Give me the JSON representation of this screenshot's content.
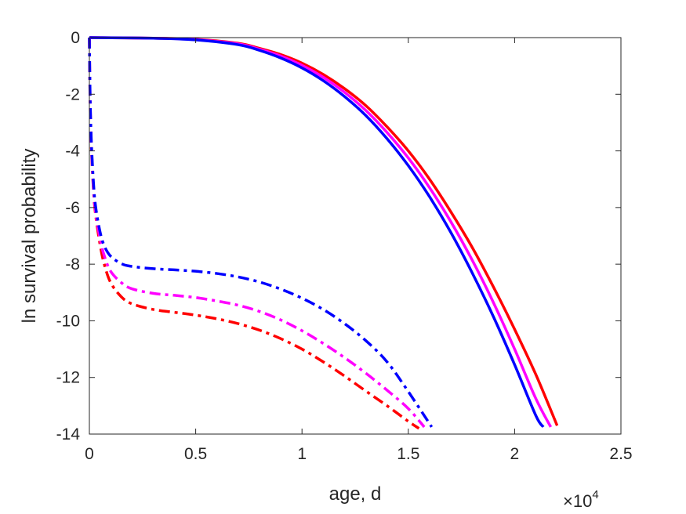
{
  "chart_data": {
    "type": "line",
    "title": "",
    "xlabel": "age, d",
    "ylabel": "ln survival probability",
    "x_multiplier": {
      "base": "×10",
      "exponent": "4"
    },
    "xlim": [
      0,
      25000
    ],
    "ylim": [
      -14,
      0
    ],
    "x_ticks": [
      0,
      5000,
      10000,
      15000,
      20000,
      25000
    ],
    "x_tick_labels": [
      "0",
      "0.5",
      "1",
      "1.5",
      "2",
      "2.5"
    ],
    "y_ticks": [
      0,
      -2,
      -4,
      -6,
      -8,
      -10,
      -12,
      -14
    ],
    "y_tick_labels": [
      "0",
      "-2",
      "-4",
      "-6",
      "-8",
      "-10",
      "-12",
      "-14"
    ],
    "grid": false,
    "legend": "none",
    "series": [
      {
        "color": "#ff0000",
        "style": "solid",
        "x": [
          0,
          3000,
          5000,
          7000,
          8000,
          9000,
          10000,
          11000,
          12000,
          13000,
          14000,
          15000,
          16000,
          17000,
          18000,
          19000,
          20000,
          21000,
          22000
        ],
        "y": [
          0,
          -0.02,
          -0.06,
          -0.2,
          -0.38,
          -0.6,
          -0.9,
          -1.3,
          -1.8,
          -2.4,
          -3.15,
          -4.0,
          -5.0,
          -6.15,
          -7.4,
          -8.8,
          -10.3,
          -11.9,
          -13.7
        ]
      },
      {
        "color": "#ff00ff",
        "style": "solid",
        "x": [
          0,
          3000,
          5000,
          7000,
          8000,
          9000,
          10000,
          11000,
          12000,
          13000,
          14000,
          15000,
          16000,
          17000,
          18000,
          19000,
          20000,
          21000,
          21700
        ],
        "y": [
          0,
          -0.02,
          -0.07,
          -0.22,
          -0.41,
          -0.65,
          -0.98,
          -1.4,
          -1.93,
          -2.57,
          -3.35,
          -4.25,
          -5.3,
          -6.5,
          -7.85,
          -9.35,
          -11.0,
          -12.75,
          -13.75
        ]
      },
      {
        "color": "#0000ff",
        "style": "solid",
        "x": [
          0,
          3000,
          5000,
          7000,
          8000,
          9000,
          10000,
          11000,
          12000,
          13000,
          14000,
          15000,
          16000,
          17000,
          18000,
          19000,
          20000,
          21000,
          21350
        ],
        "y": [
          0,
          -0.02,
          -0.08,
          -0.25,
          -0.45,
          -0.72,
          -1.07,
          -1.52,
          -2.08,
          -2.75,
          -3.57,
          -4.52,
          -5.62,
          -6.88,
          -8.3,
          -9.85,
          -11.55,
          -13.35,
          -13.75
        ]
      },
      {
        "color": "#ff0000",
        "style": "dashdot",
        "x": [
          0,
          20,
          50,
          100,
          200,
          300,
          500,
          700,
          1000,
          1500,
          2000,
          3000,
          4000,
          5000,
          6000,
          7000,
          8000,
          9000,
          10000,
          11000,
          12000,
          13000,
          14000,
          15000,
          15500
        ],
        "y": [
          0,
          -1.5,
          -2.8,
          -4.0,
          -5.5,
          -6.3,
          -7.3,
          -8.0,
          -8.65,
          -9.15,
          -9.4,
          -9.6,
          -9.7,
          -9.8,
          -9.93,
          -10.1,
          -10.33,
          -10.63,
          -11.0,
          -11.45,
          -11.95,
          -12.48,
          -13.0,
          -13.55,
          -13.8
        ]
      },
      {
        "color": "#ff00ff",
        "style": "dashdot",
        "x": [
          0,
          20,
          50,
          100,
          200,
          300,
          500,
          700,
          1000,
          1500,
          2000,
          3000,
          4000,
          5000,
          6000,
          7000,
          8000,
          9000,
          10000,
          11000,
          12000,
          13000,
          14000,
          15000,
          15750
        ],
        "y": [
          0,
          -1.4,
          -2.7,
          -3.9,
          -5.4,
          -6.2,
          -7.1,
          -7.7,
          -8.25,
          -8.65,
          -8.87,
          -9.03,
          -9.1,
          -9.18,
          -9.3,
          -9.45,
          -9.67,
          -9.97,
          -10.35,
          -10.8,
          -11.3,
          -11.85,
          -12.45,
          -13.1,
          -13.75
        ]
      },
      {
        "color": "#0000ff",
        "style": "dashdot",
        "x": [
          0,
          20,
          50,
          100,
          200,
          300,
          500,
          700,
          1000,
          1500,
          2000,
          3000,
          4000,
          5000,
          6000,
          7000,
          8000,
          9000,
          10000,
          11000,
          12000,
          13000,
          14000,
          15000,
          16100
        ],
        "y": [
          0,
          -1.3,
          -2.6,
          -3.8,
          -5.2,
          -6.0,
          -6.85,
          -7.35,
          -7.72,
          -7.98,
          -8.08,
          -8.16,
          -8.2,
          -8.25,
          -8.33,
          -8.45,
          -8.63,
          -8.88,
          -9.2,
          -9.6,
          -10.1,
          -10.7,
          -11.45,
          -12.5,
          -13.75
        ]
      }
    ]
  }
}
